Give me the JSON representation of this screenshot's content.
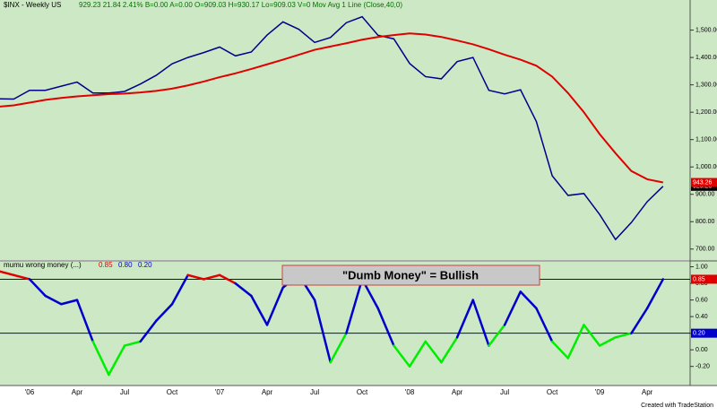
{
  "chart_data": [
    {
      "type": "line",
      "title": "$INX - Weekly  US",
      "subtitle": "929.23  21.84  2.41%   B=0.00   A=0.00   O=909.03  H=930.17  Lo=909.03  V=0   Mov Avg 1 Line (Close,40,0)",
      "ylim": [
        660,
        1610
      ],
      "yticks": [
        {
          "value": 700,
          "label": "700.00"
        },
        {
          "value": 800,
          "label": "800.00"
        },
        {
          "value": 900,
          "label": "900.00"
        },
        {
          "value": 1000,
          "label": "1,000.00"
        },
        {
          "value": 1100,
          "label": "1,100.00"
        },
        {
          "value": 1200,
          "label": "1,200.00"
        },
        {
          "value": 1300,
          "label": "1,300.00"
        },
        {
          "value": 1400,
          "label": "1,400.00"
        },
        {
          "value": 1500,
          "label": "1,500.00"
        }
      ],
      "series": [
        {
          "name": "$INX",
          "color": "#00008b",
          "values": [
            1249,
            1248,
            1280,
            1280,
            1295,
            1310,
            1270,
            1270,
            1276,
            1303,
            1335,
            1377,
            1400,
            1418,
            1438,
            1406,
            1420,
            1482,
            1530,
            1503,
            1455,
            1473,
            1527,
            1549,
            1481,
            1468,
            1378,
            1330,
            1322,
            1385,
            1400,
            1280,
            1267,
            1282,
            1166,
            968,
            896,
            903,
            826,
            735,
            797,
            873,
            929.23
          ]
        },
        {
          "name": "Mov Avg",
          "color": "#e00000",
          "values": [
            1220,
            1225,
            1235,
            1245,
            1252,
            1258,
            1262,
            1266,
            1268,
            1272,
            1278,
            1286,
            1298,
            1312,
            1328,
            1342,
            1358,
            1375,
            1392,
            1410,
            1428,
            1440,
            1452,
            1465,
            1475,
            1482,
            1488,
            1484,
            1475,
            1462,
            1448,
            1430,
            1410,
            1392,
            1370,
            1330,
            1270,
            1200,
            1120,
            1050,
            985,
            955,
            943.26
          ]
        }
      ]
    },
    {
      "type": "line",
      "title": "mumu wrong money (...)",
      "legend_values": [
        {
          "label": "0.85",
          "color": "#e00000"
        },
        {
          "label": "0.80",
          "color": "#0000cc"
        },
        {
          "label": "0.20",
          "color": "#0000cc"
        }
      ],
      "annotation": "\"Dumb Money\" = Bullish",
      "ylim": [
        -0.43,
        1.06
      ],
      "yticks": [
        {
          "value": -0.2,
          "label": "-0.20"
        },
        {
          "value": 0,
          "label": "0.00"
        },
        {
          "value": 0.2,
          "label": "0.20"
        },
        {
          "value": 0.4,
          "label": "0.40"
        },
        {
          "value": 0.6,
          "label": "0.60"
        },
        {
          "value": 0.8,
          "label": "0.80"
        },
        {
          "value": 1,
          "label": "1.00"
        }
      ],
      "thresholds": [
        {
          "value": 0.85,
          "label": "0.85",
          "color": "#e00000"
        },
        {
          "value": 0.2,
          "label": "0.20",
          "color": "#0000cc"
        }
      ],
      "categories": [
        null,
        null,
        "'06",
        null,
        null,
        "Apr",
        null,
        null,
        "Jul",
        null,
        null,
        "Oct",
        null,
        null,
        "'07",
        null,
        null,
        "Apr",
        null,
        null,
        "Jul",
        null,
        null,
        "Oct",
        null,
        null,
        "'08",
        null,
        null,
        "Apr",
        null,
        null,
        "Jul",
        null,
        null,
        "Oct",
        null,
        null,
        "'09",
        null,
        null,
        "Apr",
        null
      ],
      "series": [
        {
          "name": "mumu wrong money",
          "colors": {
            "high": "#e00000",
            "mid": "#0000cc",
            "low": "#00ee00"
          },
          "values": [
            0.95,
            0.9,
            0.85,
            0.65,
            0.55,
            0.6,
            0.1,
            -0.3,
            0.05,
            0.1,
            0.35,
            0.55,
            0.9,
            0.85,
            0.9,
            0.8,
            0.65,
            0.3,
            0.75,
            0.9,
            0.6,
            -0.15,
            0.2,
            0.85,
            0.5,
            0.05,
            -0.2,
            0.1,
            -0.15,
            0.15,
            0.6,
            0.05,
            0.3,
            0.7,
            0.5,
            0.1,
            -0.1,
            0.3,
            0.05,
            0.15,
            0.2,
            0.5,
            0.85
          ]
        }
      ]
    }
  ],
  "footer": "Created with TradeStation"
}
